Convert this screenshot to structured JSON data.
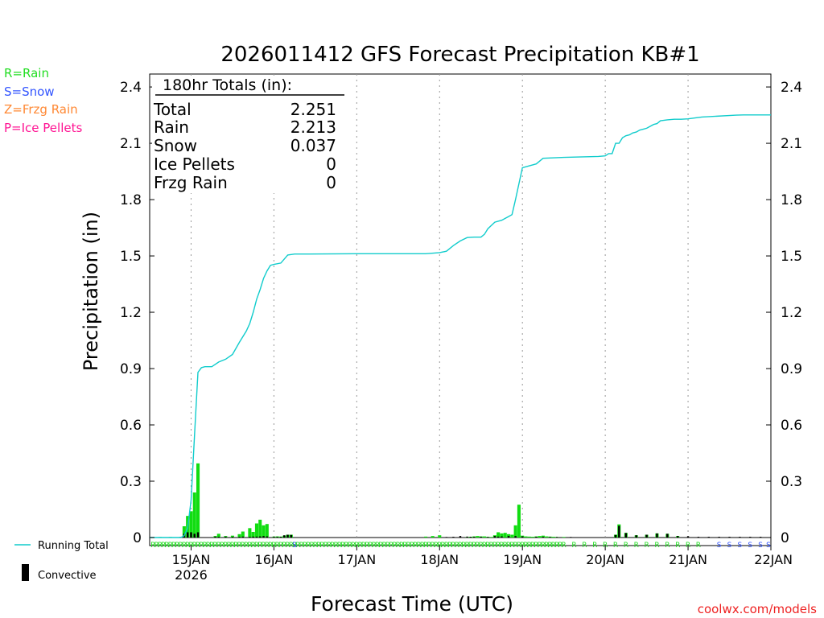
{
  "chart_data": {
    "type": "bar",
    "title": "2026011412 GFS Forecast Precipitation KB#1",
    "xlabel": "Forecast Time (UTC)",
    "ylabel": "Precipitation (in)",
    "ylim": [
      0,
      2.45
    ],
    "yticks": [
      0,
      0.3,
      0.6,
      0.9,
      1.2,
      1.5,
      1.8,
      2.1,
      2.4
    ],
    "ytick_labels": [
      "0",
      "0.3",
      "0.6",
      "0.9",
      "1.2",
      "1.5",
      "1.8",
      "2.1",
      "2.4"
    ],
    "x_unit": "hours after 2026-01-14 12Z",
    "xlim": [
      0,
      180
    ],
    "xticks": [
      12,
      36,
      60,
      84,
      108,
      132,
      156,
      180
    ],
    "xtick_labels": [
      "15JAN",
      "16JAN",
      "17JAN",
      "18JAN",
      "19JAN",
      "20JAN",
      "21JAN",
      "22JAN"
    ],
    "xtick_sublabel": "2026",
    "grid": "vertical dotted at day boundaries",
    "totals_box": {
      "heading": "180hr Totals (in):",
      "rows": [
        {
          "label": "Total",
          "value": "2.251"
        },
        {
          "label": "Rain",
          "value": "2.213"
        },
        {
          "label": "Snow",
          "value": "0.037"
        },
        {
          "label": "Ice Pellets",
          "value": "0"
        },
        {
          "label": "Frzg Rain",
          "value": "0"
        }
      ]
    },
    "type_legend": [
      {
        "text": "R=Rain",
        "color": "#22dd22"
      },
      {
        "text": "S=Snow",
        "color": "#3355ff"
      },
      {
        "text": "Z=Frzg Rain",
        "color": "#ff8833"
      },
      {
        "text": "P=Ice Pellets",
        "color": "#ff1493"
      }
    ],
    "series_legend": [
      {
        "name": "Running Total",
        "color": "#11cccc",
        "kind": "line"
      },
      {
        "name": "Convective",
        "color": "#000000",
        "kind": "bar"
      }
    ],
    "credit": "coolwx.com/models",
    "running_total": {
      "name": "Running Total",
      "x": [
        0,
        9,
        10,
        11,
        12,
        13,
        14,
        15,
        16,
        18,
        20,
        22,
        24,
        26,
        28,
        29,
        30,
        31,
        32,
        33,
        34,
        35,
        36,
        38,
        40,
        42,
        46,
        60,
        80,
        84,
        86,
        88,
        90,
        92,
        94,
        96,
        97,
        98,
        100,
        102,
        103,
        104,
        105,
        106,
        108,
        110,
        112,
        114,
        120,
        130,
        132,
        133,
        134,
        135,
        136,
        137,
        138,
        139,
        140,
        141,
        142,
        143,
        144,
        146,
        147,
        148,
        150,
        152,
        154,
        156,
        158,
        160,
        170,
        172,
        174,
        176,
        178,
        180
      ],
      "values": [
        0,
        0,
        0.01,
        0.05,
        0.2,
        0.55,
        0.88,
        0.905,
        0.91,
        0.91,
        0.935,
        0.95,
        0.975,
        1.04,
        1.1,
        1.14,
        1.2,
        1.27,
        1.32,
        1.38,
        1.42,
        1.45,
        1.455,
        1.462,
        1.505,
        1.51,
        1.51,
        1.512,
        1.512,
        1.518,
        1.525,
        1.555,
        1.58,
        1.598,
        1.6,
        1.6,
        1.615,
        1.645,
        1.68,
        1.69,
        1.7,
        1.71,
        1.72,
        1.8,
        1.97,
        1.98,
        1.99,
        2.02,
        2.025,
        2.03,
        2.033,
        2.045,
        2.045,
        2.1,
        2.1,
        2.13,
        2.14,
        2.145,
        2.155,
        2.16,
        2.17,
        2.175,
        2.18,
        2.2,
        2.205,
        2.22,
        2.225,
        2.228,
        2.228,
        2.23,
        2.235,
        2.24,
        2.25,
        2.251,
        2.251,
        2.251,
        2.251,
        2.251
      ]
    },
    "bars": {
      "name": "Precipitation",
      "color": "#11dd11",
      "x": [
        3,
        6,
        9,
        10,
        11,
        12,
        13,
        14,
        19,
        20,
        22,
        24,
        26,
        27,
        29,
        30,
        31,
        32,
        33,
        34,
        36,
        37,
        38,
        39,
        40,
        41,
        80,
        82,
        84,
        92,
        93,
        94,
        95,
        96,
        97,
        98,
        99,
        100,
        101,
        102,
        103,
        104,
        105,
        106,
        107,
        108,
        109,
        110,
        111,
        112,
        113,
        114,
        115,
        116,
        117,
        118,
        120,
        135,
        136,
        138,
        141,
        144,
        147,
        150,
        153
      ],
      "values": [
        0.003,
        0.003,
        0.003,
        0.06,
        0.115,
        0.14,
        0.24,
        0.395,
        0.008,
        0.02,
        0.008,
        0.01,
        0.018,
        0.032,
        0.05,
        0.03,
        0.075,
        0.095,
        0.065,
        0.072,
        0.005,
        0.006,
        0.005,
        0.01,
        0.015,
        0.015,
        0.005,
        0.008,
        0.012,
        0.003,
        0.004,
        0.006,
        0.008,
        0.006,
        0.006,
        0.004,
        0.003,
        0.012,
        0.028,
        0.022,
        0.025,
        0.018,
        0.015,
        0.065,
        0.175,
        0.01,
        0.006,
        0.005,
        0.004,
        0.006,
        0.008,
        0.01,
        0.006,
        0.005,
        0.004,
        0.003,
        0.003,
        0.015,
        0.07,
        0.025,
        0.012,
        0.015,
        0.022,
        0.02,
        0.008
      ]
    },
    "convective": {
      "name": "Convective",
      "color": "#000000",
      "x": [
        9,
        10,
        11,
        12,
        13,
        14,
        19,
        20,
        22,
        24,
        26,
        27,
        29,
        30,
        31,
        32,
        33,
        34,
        36,
        37,
        38,
        39,
        40,
        41,
        86,
        88,
        90,
        92,
        93,
        94,
        96,
        98,
        100,
        101,
        102,
        104,
        106,
        108,
        112,
        114,
        116,
        118,
        122,
        135,
        136,
        138,
        141,
        144,
        147,
        150,
        153,
        156,
        159,
        162,
        165,
        168,
        171,
        174,
        177
      ],
      "values": [
        0.003,
        0.02,
        0.028,
        0.028,
        0.02,
        0.028,
        0.005,
        0.004,
        0.005,
        0.004,
        0.004,
        0.005,
        0.004,
        0.005,
        0.005,
        0.006,
        0.008,
        0.006,
        0.004,
        0.004,
        0.004,
        0.012,
        0.015,
        0.014,
        0.003,
        0.004,
        0.008,
        0.005,
        0.004,
        0.004,
        0.004,
        0.003,
        0.008,
        0.005,
        0.006,
        0.008,
        0.008,
        0.006,
        0.004,
        0.004,
        0.003,
        0.003,
        0.003,
        0.014,
        0.062,
        0.024,
        0.012,
        0.015,
        0.022,
        0.02,
        0.008,
        0.007,
        0.004,
        0.004,
        0.004,
        0.004,
        0.004,
        0.004,
        0.004
      ]
    },
    "ptype_row": {
      "rain_color": "#22dd22",
      "snow_color": "#3355ff",
      "rain_letter": "R",
      "snow_letter": "S",
      "rain_x": [
        1,
        2,
        3,
        4,
        5,
        6,
        7,
        8,
        9,
        10,
        11,
        12,
        13,
        14,
        15,
        16,
        17,
        18,
        19,
        20,
        21,
        22,
        23,
        24,
        25,
        26,
        27,
        28,
        29,
        30,
        31,
        32,
        33,
        34,
        35,
        36,
        37,
        38,
        39,
        40,
        41,
        42,
        43,
        44,
        45,
        46,
        47,
        48,
        49,
        50,
        51,
        52,
        53,
        54,
        55,
        56,
        57,
        58,
        59,
        60,
        61,
        62,
        63,
        64,
        65,
        66,
        67,
        68,
        69,
        70,
        71,
        72,
        73,
        74,
        75,
        76,
        77,
        78,
        79,
        80,
        81,
        82,
        83,
        84,
        85,
        86,
        87,
        88,
        89,
        90,
        91,
        92,
        93,
        94,
        95,
        96,
        97,
        98,
        99,
        100,
        101,
        102,
        103,
        104,
        105,
        106,
        107,
        108,
        109,
        110,
        111,
        112,
        113,
        114,
        115,
        116,
        117,
        118,
        119,
        120,
        123,
        126,
        129,
        132,
        135,
        138,
        141,
        144,
        147,
        150,
        153,
        156,
        159
      ],
      "snow_x": [
        42,
        165,
        168,
        171,
        174,
        177,
        180
      ]
    }
  }
}
